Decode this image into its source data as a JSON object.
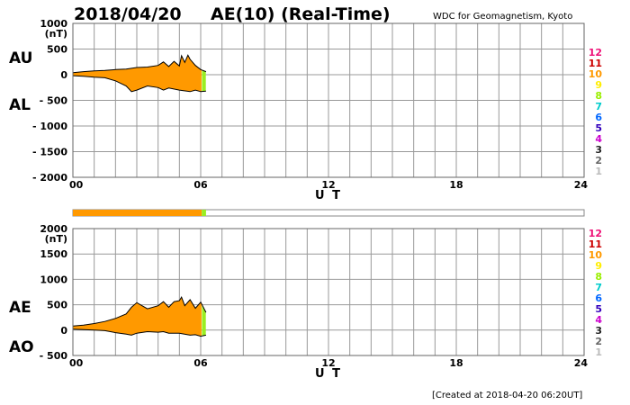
{
  "header": {
    "date": "2018/04/20",
    "title": "AE(10) (Real-Time)",
    "source": "WDC for Geomagnetism, Kyoto"
  },
  "footer": {
    "created": "[Created at 2018-04-20 06:20UT]"
  },
  "colors": {
    "fill": "#ff9900",
    "latest_fill": "#99ee22",
    "grid": "#999999",
    "curve": "#000000",
    "status_bar_empty": "#ffffff"
  },
  "legend": [
    {
      "label": "12",
      "color": "#ee1177"
    },
    {
      "label": "11",
      "color": "#cc0000"
    },
    {
      "label": "10",
      "color": "#ff9900"
    },
    {
      "label": "9",
      "color": "#ffee00"
    },
    {
      "label": "8",
      "color": "#99ee00"
    },
    {
      "label": "7",
      "color": "#00cccc"
    },
    {
      "label": "6",
      "color": "#0066ff"
    },
    {
      "label": "5",
      "color": "#3300bb"
    },
    {
      "label": "4",
      "color": "#cc00cc"
    },
    {
      "label": "3",
      "color": "#222222"
    },
    {
      "label": "2",
      "color": "#666666"
    },
    {
      "label": "1",
      "color": "#bbbbbb"
    }
  ],
  "status_bar": {
    "stations": "10",
    "coverage_hours": 6.25,
    "green_start_hours": 6.05
  },
  "chart_data": [
    {
      "type": "area",
      "panel": "AU/AL",
      "upper_label": "AU",
      "lower_label": "AL",
      "unit": "(nT)",
      "xlabel": "U T",
      "xlim": [
        0,
        24
      ],
      "ylim": [
        -2000,
        1000
      ],
      "x_ticks": [
        {
          "v": 0,
          "label": "00"
        },
        {
          "v": 6,
          "label": "06"
        },
        {
          "v": 12,
          "label": "12"
        },
        {
          "v": 18,
          "label": "18"
        },
        {
          "v": 24,
          "label": "24"
        }
      ],
      "y_ticks": [
        {
          "v": 1000,
          "label": "1000"
        },
        {
          "v": 500,
          "label": "500"
        },
        {
          "v": 0,
          "label": "0"
        },
        {
          "v": -500,
          "label": "- 500"
        },
        {
          "v": -1000,
          "label": "- 1000"
        },
        {
          "v": -1500,
          "label": "- 1500"
        },
        {
          "v": -2000,
          "label": "- 2000"
        }
      ],
      "green_from": 6.05,
      "series": [
        {
          "name": "AU",
          "x": [
            0,
            0.5,
            1,
            1.5,
            2,
            2.5,
            3,
            3.5,
            4,
            4.25,
            4.5,
            4.75,
            5,
            5.1,
            5.25,
            5.4,
            5.5,
            5.75,
            6,
            6.25
          ],
          "values": [
            40,
            60,
            75,
            85,
            100,
            110,
            140,
            150,
            180,
            250,
            160,
            260,
            170,
            370,
            240,
            380,
            300,
            180,
            100,
            60
          ]
        },
        {
          "name": "AL",
          "x": [
            0,
            0.5,
            1,
            1.5,
            2,
            2.5,
            2.75,
            3,
            3.5,
            4,
            4.25,
            4.5,
            5,
            5.5,
            5.75,
            6,
            6.25
          ],
          "values": [
            -20,
            -30,
            -50,
            -60,
            -120,
            -220,
            -330,
            -300,
            -220,
            -250,
            -300,
            -260,
            -300,
            -330,
            -300,
            -330,
            -320
          ]
        }
      ]
    },
    {
      "type": "area",
      "panel": "AE/AO",
      "upper_label": "AE",
      "lower_label": "AO",
      "unit": "(nT)",
      "xlabel": "U T",
      "xlim": [
        0,
        24
      ],
      "ylim": [
        -500,
        2000
      ],
      "x_ticks": [
        {
          "v": 0,
          "label": "00"
        },
        {
          "v": 6,
          "label": "06"
        },
        {
          "v": 12,
          "label": "12"
        },
        {
          "v": 18,
          "label": "18"
        },
        {
          "v": 24,
          "label": "24"
        }
      ],
      "y_ticks": [
        {
          "v": 2000,
          "label": "2000"
        },
        {
          "v": 1500,
          "label": "1500"
        },
        {
          "v": 1000,
          "label": "1000"
        },
        {
          "v": 500,
          "label": "500"
        },
        {
          "v": 0,
          "label": "0"
        },
        {
          "v": -500,
          "label": "- 500"
        }
      ],
      "green_from": 6.05,
      "series": [
        {
          "name": "AE",
          "x": [
            0,
            0.5,
            1,
            1.5,
            2,
            2.5,
            2.75,
            3,
            3.5,
            4,
            4.25,
            4.5,
            4.75,
            5,
            5.1,
            5.25,
            5.5,
            5.75,
            6,
            6.25
          ],
          "values": [
            80,
            100,
            130,
            170,
            230,
            320,
            450,
            540,
            420,
            480,
            560,
            450,
            560,
            580,
            650,
            480,
            600,
            430,
            550,
            350
          ]
        },
        {
          "name": "AO",
          "x": [
            0,
            0.5,
            1,
            1.5,
            2,
            2.5,
            2.75,
            3,
            3.5,
            4,
            4.25,
            4.5,
            5,
            5.5,
            5.75,
            6,
            6.25
          ],
          "values": [
            20,
            10,
            0,
            -10,
            -50,
            -80,
            -100,
            -60,
            -30,
            -40,
            -30,
            -60,
            -60,
            -100,
            -90,
            -120,
            -100
          ]
        }
      ]
    }
  ]
}
